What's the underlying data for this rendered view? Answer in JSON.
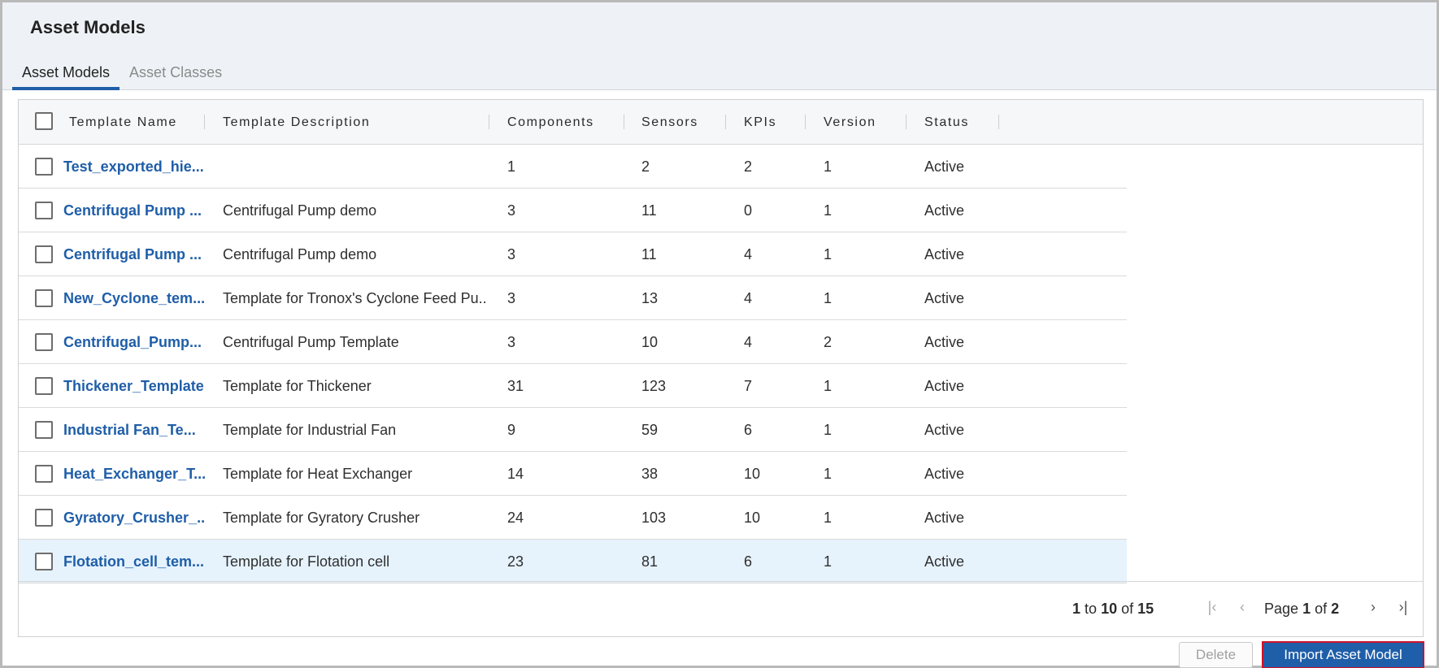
{
  "header": {
    "title": "Asset Models"
  },
  "tabs": [
    {
      "label": "Asset Models",
      "active": true
    },
    {
      "label": "Asset Classes",
      "active": false
    }
  ],
  "table": {
    "columns": [
      "Template Name",
      "Template Description",
      "Components",
      "Sensors",
      "KPIs",
      "Version",
      "Status"
    ],
    "rows": [
      {
        "name": "Test_exported_hie...",
        "description": "",
        "components": "1",
        "sensors": "2",
        "kpis": "2",
        "version": "1",
        "status": "Active"
      },
      {
        "name": "Centrifugal Pump ...",
        "description": "Centrifugal Pump demo",
        "components": "3",
        "sensors": "11",
        "kpis": "0",
        "version": "1",
        "status": "Active"
      },
      {
        "name": "Centrifugal Pump ...",
        "description": "Centrifugal Pump demo",
        "components": "3",
        "sensors": "11",
        "kpis": "4",
        "version": "1",
        "status": "Active"
      },
      {
        "name": "New_Cyclone_tem...",
        "description": "Template for Tronox's Cyclone Feed Pu...",
        "components": "3",
        "sensors": "13",
        "kpis": "4",
        "version": "1",
        "status": "Active"
      },
      {
        "name": "Centrifugal_Pump...",
        "description": "Centrifugal Pump Template",
        "components": "3",
        "sensors": "10",
        "kpis": "4",
        "version": "2",
        "status": "Active"
      },
      {
        "name": "Thickener_Template",
        "description": "Template for Thickener",
        "components": "31",
        "sensors": "123",
        "kpis": "7",
        "version": "1",
        "status": "Active"
      },
      {
        "name": "Industrial Fan_Te...",
        "description": "Template for Industrial Fan",
        "components": "9",
        "sensors": "59",
        "kpis": "6",
        "version": "1",
        "status": "Active"
      },
      {
        "name": "Heat_Exchanger_T...",
        "description": "Template for Heat Exchanger",
        "components": "14",
        "sensors": "38",
        "kpis": "10",
        "version": "1",
        "status": "Active"
      },
      {
        "name": "Gyratory_Crusher_...",
        "description": "Template for Gyratory Crusher",
        "components": "24",
        "sensors": "103",
        "kpis": "10",
        "version": "1",
        "status": "Active"
      },
      {
        "name": "Flotation_cell_tem...",
        "description": "Template for Flotation cell",
        "components": "23",
        "sensors": "81",
        "kpis": "6",
        "version": "1",
        "status": "Active"
      }
    ]
  },
  "pagination": {
    "from": "1",
    "to_word": "to",
    "to": "10",
    "of_word": "of",
    "total": "15",
    "page_word": "Page",
    "page": "1",
    "page_of_word": "of",
    "page_total": "2",
    "first_icon": "first-page-icon",
    "prev_icon": "previous-page-icon",
    "next_icon": "next-page-icon",
    "last_icon": "last-page-icon"
  },
  "actions": {
    "delete_label": "Delete",
    "import_label": "Import Asset Model"
  },
  "colors": {
    "accent": "#1f5ea8",
    "selected_row": "#e6f3fd",
    "highlight_border": "#d0122a"
  }
}
